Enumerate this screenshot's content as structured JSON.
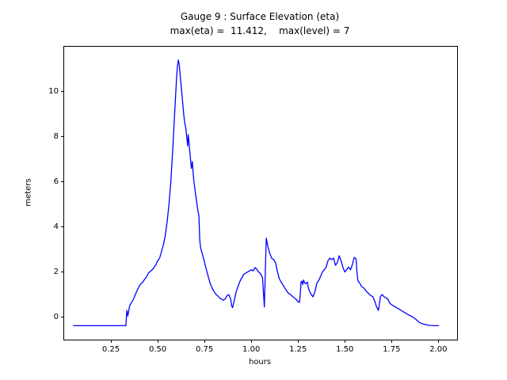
{
  "title_line1": "Gauge 9 : Surface Elevation (eta)",
  "title_line2": "max(eta) =  11.412,    max(level) = 7",
  "xlabel": "hours",
  "ylabel": "meters",
  "chart_data": {
    "type": "line",
    "title": "Gauge 9 : Surface Elevation (eta)",
    "subtitle": "max(eta) =  11.412,    max(level) = 7",
    "xlabel": "hours",
    "ylabel": "meters",
    "max_eta": 11.412,
    "max_level": 7,
    "grid": false,
    "legend": null,
    "xlim": [
      0.0,
      2.1
    ],
    "ylim": [
      -1.0,
      12.0
    ],
    "xticks": [
      0.25,
      0.5,
      0.75,
      1.0,
      1.25,
      1.5,
      1.75,
      2.0
    ],
    "xtick_labels": [
      "0.25",
      "0.50",
      "0.75",
      "1.00",
      "1.25",
      "1.50",
      "1.75",
      "2.00"
    ],
    "yticks": [
      0,
      2,
      4,
      6,
      8,
      10
    ],
    "ytick_labels": [
      "0",
      "2",
      "4",
      "6",
      "8",
      "10"
    ],
    "series": [
      {
        "name": "eta",
        "color": "#0000ff",
        "points": [
          [
            0.05,
            -0.38
          ],
          [
            0.15,
            -0.38
          ],
          [
            0.25,
            -0.38
          ],
          [
            0.3,
            -0.38
          ],
          [
            0.33,
            -0.38
          ],
          [
            0.335,
            0.3
          ],
          [
            0.34,
            0.05
          ],
          [
            0.35,
            0.5
          ],
          [
            0.36,
            0.65
          ],
          [
            0.37,
            0.78
          ],
          [
            0.38,
            1.0
          ],
          [
            0.39,
            1.18
          ],
          [
            0.4,
            1.35
          ],
          [
            0.41,
            1.48
          ],
          [
            0.42,
            1.55
          ],
          [
            0.43,
            1.68
          ],
          [
            0.44,
            1.78
          ],
          [
            0.45,
            1.95
          ],
          [
            0.46,
            2.02
          ],
          [
            0.47,
            2.1
          ],
          [
            0.48,
            2.2
          ],
          [
            0.49,
            2.32
          ],
          [
            0.5,
            2.5
          ],
          [
            0.51,
            2.62
          ],
          [
            0.52,
            2.9
          ],
          [
            0.53,
            3.2
          ],
          [
            0.54,
            3.6
          ],
          [
            0.55,
            4.2
          ],
          [
            0.56,
            5.0
          ],
          [
            0.57,
            6.0
          ],
          [
            0.58,
            7.4
          ],
          [
            0.59,
            9.0
          ],
          [
            0.6,
            10.5
          ],
          [
            0.605,
            11.1
          ],
          [
            0.61,
            11.41
          ],
          [
            0.615,
            11.2
          ],
          [
            0.62,
            10.75
          ],
          [
            0.625,
            10.3
          ],
          [
            0.63,
            9.85
          ],
          [
            0.635,
            9.35
          ],
          [
            0.64,
            8.9
          ],
          [
            0.645,
            8.6
          ],
          [
            0.65,
            8.4
          ],
          [
            0.655,
            8.0
          ],
          [
            0.66,
            7.6
          ],
          [
            0.663,
            8.1
          ],
          [
            0.667,
            7.8
          ],
          [
            0.67,
            7.5
          ],
          [
            0.675,
            7.05
          ],
          [
            0.68,
            6.6
          ],
          [
            0.685,
            6.9
          ],
          [
            0.69,
            6.3
          ],
          [
            0.695,
            5.9
          ],
          [
            0.7,
            5.6
          ],
          [
            0.705,
            5.3
          ],
          [
            0.71,
            5.0
          ],
          [
            0.715,
            4.7
          ],
          [
            0.72,
            4.5
          ],
          [
            0.725,
            3.4
          ],
          [
            0.73,
            3.05
          ],
          [
            0.74,
            2.75
          ],
          [
            0.75,
            2.45
          ],
          [
            0.76,
            2.1
          ],
          [
            0.77,
            1.8
          ],
          [
            0.78,
            1.5
          ],
          [
            0.79,
            1.3
          ],
          [
            0.8,
            1.15
          ],
          [
            0.81,
            1.02
          ],
          [
            0.82,
            0.95
          ],
          [
            0.83,
            0.86
          ],
          [
            0.84,
            0.8
          ],
          [
            0.85,
            0.75
          ],
          [
            0.86,
            0.8
          ],
          [
            0.87,
            0.95
          ],
          [
            0.88,
            1.0
          ],
          [
            0.89,
            0.8
          ],
          [
            0.895,
            0.5
          ],
          [
            0.9,
            0.42
          ],
          [
            0.92,
            1.15
          ],
          [
            0.94,
            1.6
          ],
          [
            0.96,
            1.9
          ],
          [
            0.98,
            2.0
          ],
          [
            1.0,
            2.1
          ],
          [
            1.01,
            2.05
          ],
          [
            1.02,
            2.2
          ],
          [
            1.03,
            2.12
          ],
          [
            1.04,
            2.0
          ],
          [
            1.05,
            1.92
          ],
          [
            1.06,
            1.75
          ],
          [
            1.07,
            0.45
          ],
          [
            1.08,
            3.5
          ],
          [
            1.09,
            3.1
          ],
          [
            1.1,
            2.8
          ],
          [
            1.11,
            2.6
          ],
          [
            1.12,
            2.55
          ],
          [
            1.13,
            2.4
          ],
          [
            1.14,
            2.0
          ],
          [
            1.15,
            1.7
          ],
          [
            1.16,
            1.55
          ],
          [
            1.17,
            1.42
          ],
          [
            1.18,
            1.28
          ],
          [
            1.19,
            1.15
          ],
          [
            1.2,
            1.05
          ],
          [
            1.21,
            1.0
          ],
          [
            1.22,
            0.92
          ],
          [
            1.23,
            0.85
          ],
          [
            1.24,
            0.78
          ],
          [
            1.25,
            0.68
          ],
          [
            1.258,
            0.65
          ],
          [
            1.262,
            1.05
          ],
          [
            1.266,
            1.55
          ],
          [
            1.27,
            1.6
          ],
          [
            1.275,
            1.45
          ],
          [
            1.28,
            1.65
          ],
          [
            1.285,
            1.52
          ],
          [
            1.29,
            1.48
          ],
          [
            1.3,
            1.55
          ],
          [
            1.305,
            1.3
          ],
          [
            1.31,
            1.18
          ],
          [
            1.32,
            1.0
          ],
          [
            1.33,
            0.9
          ],
          [
            1.34,
            1.12
          ],
          [
            1.35,
            1.5
          ],
          [
            1.36,
            1.62
          ],
          [
            1.37,
            1.8
          ],
          [
            1.38,
            2.0
          ],
          [
            1.39,
            2.1
          ],
          [
            1.4,
            2.22
          ],
          [
            1.41,
            2.5
          ],
          [
            1.42,
            2.62
          ],
          [
            1.43,
            2.55
          ],
          [
            1.44,
            2.62
          ],
          [
            1.45,
            2.3
          ],
          [
            1.46,
            2.42
          ],
          [
            1.47,
            2.72
          ],
          [
            1.48,
            2.5
          ],
          [
            1.49,
            2.2
          ],
          [
            1.5,
            2.0
          ],
          [
            1.51,
            2.1
          ],
          [
            1.52,
            2.22
          ],
          [
            1.53,
            2.1
          ],
          [
            1.54,
            2.32
          ],
          [
            1.55,
            2.65
          ],
          [
            1.56,
            2.58
          ],
          [
            1.565,
            2.0
          ],
          [
            1.57,
            1.62
          ],
          [
            1.58,
            1.5
          ],
          [
            1.59,
            1.35
          ],
          [
            1.6,
            1.3
          ],
          [
            1.61,
            1.2
          ],
          [
            1.62,
            1.1
          ],
          [
            1.63,
            1.02
          ],
          [
            1.64,
            0.95
          ],
          [
            1.65,
            0.9
          ],
          [
            1.66,
            0.7
          ],
          [
            1.67,
            0.45
          ],
          [
            1.68,
            0.3
          ],
          [
            1.69,
            0.92
          ],
          [
            1.7,
            1.0
          ],
          [
            1.71,
            0.9
          ],
          [
            1.72,
            0.85
          ],
          [
            1.73,
            0.8
          ],
          [
            1.74,
            0.62
          ],
          [
            1.75,
            0.55
          ],
          [
            1.76,
            0.5
          ],
          [
            1.77,
            0.45
          ],
          [
            1.78,
            0.4
          ],
          [
            1.79,
            0.36
          ],
          [
            1.8,
            0.3
          ],
          [
            1.82,
            0.2
          ],
          [
            1.84,
            0.1
          ],
          [
            1.86,
            0.02
          ],
          [
            1.88,
            -0.1
          ],
          [
            1.9,
            -0.25
          ],
          [
            1.92,
            -0.31
          ],
          [
            1.94,
            -0.35
          ],
          [
            1.96,
            -0.37
          ],
          [
            1.98,
            -0.38
          ],
          [
            2.0,
            -0.38
          ]
        ]
      }
    ]
  }
}
